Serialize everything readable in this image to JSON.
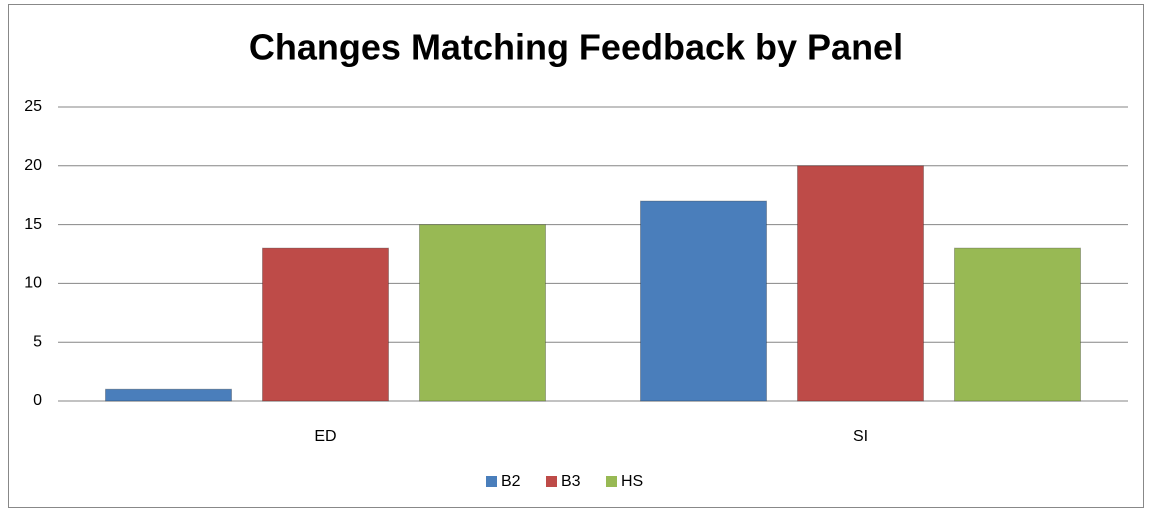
{
  "chart_data": {
    "type": "bar",
    "title": "Changes Matching Feedback by Panel",
    "categories": [
      "ED",
      "SI"
    ],
    "series": [
      {
        "name": "B2",
        "color": "#4a7ebb",
        "values": [
          1,
          17
        ]
      },
      {
        "name": "B3",
        "color": "#be4b48",
        "values": [
          13,
          20
        ]
      },
      {
        "name": "HS",
        "color": "#98b954",
        "values": [
          15,
          13
        ]
      }
    ],
    "ylim": [
      0,
      25
    ],
    "yticks": [
      0,
      5,
      10,
      15,
      20,
      25
    ],
    "grid": true,
    "legend": "bottom"
  }
}
